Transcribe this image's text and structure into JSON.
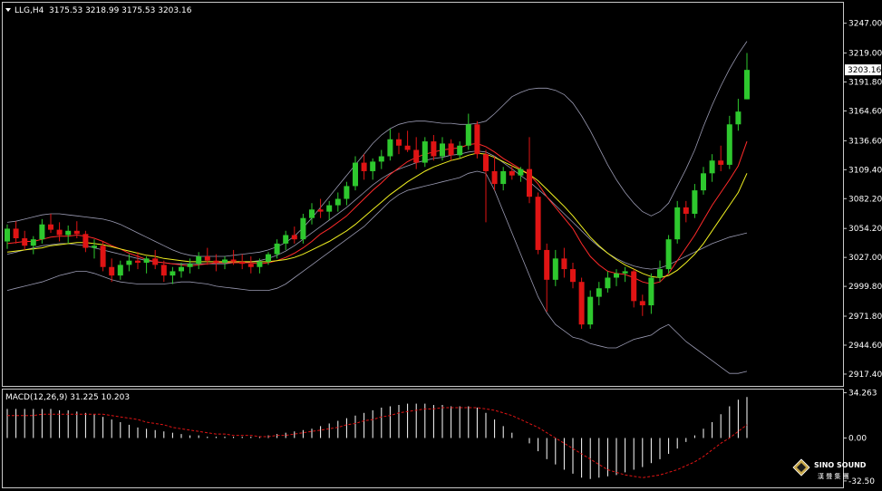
{
  "chart_header": {
    "symbol_timeframe": "LLG,H4",
    "ohlc": "3175.53 3218.99 3175.53 3203.16"
  },
  "macd_header": {
    "label": "MACD(12,26,9) 31.225 10.203"
  },
  "colors": {
    "background": "#000000",
    "bull": "#2ec82e",
    "bear": "#e01414",
    "bands": "#9a9ab2",
    "ma_fast": "#ff2a2a",
    "ma_slow": "#f0f020",
    "macd_hist": "#ffffff",
    "macd_signal": "#e01414",
    "frame": "#c8c8c8"
  },
  "logo": {
    "line1": "SINO SOUND",
    "line2": "漢 聲 集 團",
    "icon": "diamond-logo-icon"
  },
  "chart_data": [
    {
      "type": "candlestick",
      "title": "LLG,H4",
      "ylim": [
        2908,
        3262
      ],
      "y_ticks": [
        "3247.00",
        "3219.00",
        "3191.80",
        "3164.60",
        "3136.60",
        "3109.40",
        "3082.20",
        "3054.20",
        "3027.00",
        "2999.80",
        "2971.80",
        "2944.60",
        "2917.40"
      ],
      "current_price": "3203.16",
      "candles": [
        [
          3042,
          3058,
          3035,
          3054
        ],
        [
          3054,
          3061,
          3040,
          3045
        ],
        [
          3045,
          3052,
          3034,
          3038
        ],
        [
          3038,
          3047,
          3030,
          3044
        ],
        [
          3044,
          3063,
          3040,
          3058
        ],
        [
          3058,
          3068,
          3050,
          3053
        ],
        [
          3053,
          3060,
          3042,
          3048
        ],
        [
          3048,
          3057,
          3040,
          3052
        ],
        [
          3052,
          3061,
          3045,
          3049
        ],
        [
          3049,
          3052,
          3032,
          3036
        ],
        [
          3036,
          3044,
          3026,
          3038
        ],
        [
          3038,
          3042,
          3014,
          3018
        ],
        [
          3018,
          3026,
          3004,
          3010
        ],
        [
          3010,
          3024,
          3006,
          3020
        ],
        [
          3020,
          3030,
          3014,
          3024
        ],
        [
          3024,
          3032,
          3016,
          3022
        ],
        [
          3022,
          3028,
          3012,
          3026
        ],
        [
          3026,
          3034,
          3016,
          3020
        ],
        [
          3020,
          3024,
          3004,
          3010
        ],
        [
          3010,
          3018,
          3002,
          3014
        ],
        [
          3014,
          3022,
          3008,
          3018
        ],
        [
          3018,
          3026,
          3012,
          3021
        ],
        [
          3021,
          3032,
          3016,
          3028
        ],
        [
          3028,
          3036,
          3020,
          3024
        ],
        [
          3024,
          3030,
          3014,
          3022
        ],
        [
          3022,
          3028,
          3016,
          3025
        ],
        [
          3025,
          3034,
          3020,
          3023
        ],
        [
          3023,
          3030,
          3016,
          3021
        ],
        [
          3021,
          3028,
          3012,
          3018
        ],
        [
          3018,
          3026,
          3012,
          3023
        ],
        [
          3023,
          3032,
          3020,
          3030
        ],
        [
          3030,
          3044,
          3026,
          3040
        ],
        [
          3040,
          3052,
          3034,
          3048
        ],
        [
          3048,
          3056,
          3040,
          3044
        ],
        [
          3044,
          3068,
          3040,
          3064
        ],
        [
          3064,
          3078,
          3058,
          3072
        ],
        [
          3072,
          3082,
          3064,
          3070
        ],
        [
          3070,
          3080,
          3062,
          3076
        ],
        [
          3076,
          3088,
          3070,
          3082
        ],
        [
          3082,
          3098,
          3076,
          3094
        ],
        [
          3094,
          3122,
          3090,
          3116
        ],
        [
          3116,
          3124,
          3100,
          3108
        ],
        [
          3108,
          3120,
          3100,
          3117
        ],
        [
          3117,
          3128,
          3110,
          3122
        ],
        [
          3122,
          3148,
          3118,
          3138
        ],
        [
          3138,
          3144,
          3124,
          3132
        ],
        [
          3132,
          3146,
          3126,
          3128
        ],
        [
          3128,
          3140,
          3110,
          3116
        ],
        [
          3116,
          3140,
          3112,
          3136
        ],
        [
          3136,
          3142,
          3118,
          3122
        ],
        [
          3122,
          3140,
          3118,
          3134
        ],
        [
          3134,
          3138,
          3118,
          3123
        ],
        [
          3123,
          3136,
          3120,
          3132
        ],
        [
          3132,
          3162,
          3128,
          3152
        ],
        [
          3152,
          3155,
          3120,
          3124
        ],
        [
          3124,
          3128,
          3060,
          3108
        ],
        [
          3108,
          3122,
          3090,
          3096
        ],
        [
          3096,
          3112,
          3090,
          3108
        ],
        [
          3108,
          3114,
          3100,
          3104
        ],
        [
          3104,
          3112,
          3098,
          3110
        ],
        [
          3110,
          3140,
          3078,
          3084
        ],
        [
          3084,
          3088,
          3030,
          3034
        ],
        [
          3034,
          3040,
          2976,
          3006
        ],
        [
          3006,
          3034,
          3000,
          3026
        ],
        [
          3026,
          3036,
          3008,
          3016
        ],
        [
          3016,
          3022,
          2998,
          3004
        ],
        [
          3004,
          3008,
          2960,
          2964
        ],
        [
          2964,
          2996,
          2960,
          2990
        ],
        [
          2990,
          3004,
          2982,
          2998
        ],
        [
          2998,
          3014,
          2994,
          3008
        ],
        [
          3008,
          3016,
          3000,
          3012
        ],
        [
          3012,
          3018,
          3004,
          3014
        ],
        [
          3014,
          3016,
          2980,
          2986
        ],
        [
          2986,
          2992,
          2972,
          2982
        ],
        [
          2982,
          3012,
          2974,
          3008
        ],
        [
          3008,
          3024,
          3004,
          3016
        ],
        [
          3016,
          3048,
          3012,
          3044
        ],
        [
          3044,
          3080,
          3040,
          3074
        ],
        [
          3074,
          3080,
          3060,
          3068
        ],
        [
          3068,
          3096,
          3064,
          3090
        ],
        [
          3090,
          3112,
          3086,
          3106
        ],
        [
          3106,
          3124,
          3098,
          3118
        ],
        [
          3118,
          3132,
          3108,
          3114
        ],
        [
          3114,
          3160,
          3110,
          3152
        ],
        [
          3152,
          3176,
          3146,
          3164
        ],
        [
          3175.53,
          3218.99,
          3175.53,
          3203.16
        ]
      ],
      "moving_averages": [
        {
          "name": "fast",
          "color": "#ff2a2a",
          "values": [
            3040,
            3041,
            3042,
            3042,
            3044,
            3046,
            3047,
            3047,
            3048,
            3047,
            3045,
            3042,
            3038,
            3035,
            3031,
            3028,
            3025,
            3023,
            3022,
            3021,
            3020,
            3019,
            3020,
            3021,
            3022,
            3022,
            3022,
            3022,
            3022,
            3021,
            3022,
            3024,
            3027,
            3031,
            3036,
            3042,
            3049,
            3054,
            3060,
            3066,
            3074,
            3082,
            3090,
            3097,
            3105,
            3111,
            3117,
            3121,
            3124,
            3126,
            3128,
            3129,
            3130,
            3133,
            3134,
            3131,
            3126,
            3120,
            3115,
            3110,
            3105,
            3096,
            3084,
            3074,
            3064,
            3054,
            3040,
            3028,
            3020,
            3014,
            3012,
            3011,
            3008,
            3004,
            3002,
            3004,
            3012,
            3024,
            3036,
            3048,
            3062,
            3076,
            3088,
            3100,
            3113,
            3136
          ]
        },
        {
          "name": "slow",
          "color": "#f0f020",
          "values": [
            3032,
            3033,
            3034,
            3035,
            3036,
            3038,
            3039,
            3040,
            3041,
            3041,
            3040,
            3039,
            3037,
            3035,
            3033,
            3031,
            3029,
            3028,
            3026,
            3025,
            3024,
            3023,
            3023,
            3023,
            3023,
            3023,
            3023,
            3023,
            3023,
            3023,
            3023,
            3024,
            3025,
            3027,
            3030,
            3034,
            3038,
            3042,
            3047,
            3052,
            3058,
            3065,
            3072,
            3079,
            3086,
            3092,
            3098,
            3103,
            3108,
            3112,
            3115,
            3118,
            3120,
            3123,
            3125,
            3124,
            3121,
            3117,
            3113,
            3109,
            3105,
            3099,
            3091,
            3083,
            3075,
            3066,
            3056,
            3046,
            3038,
            3031,
            3025,
            3020,
            3016,
            3012,
            3009,
            3008,
            3010,
            3015,
            3022,
            3030,
            3040,
            3052,
            3064,
            3076,
            3088,
            3106
          ]
        },
        {
          "name": "bb_upper",
          "color": "#9a9ab2",
          "values": [
            3060,
            3061,
            3063,
            3065,
            3067,
            3068,
            3068,
            3067,
            3066,
            3065,
            3064,
            3063,
            3061,
            3058,
            3054,
            3050,
            3046,
            3042,
            3038,
            3034,
            3031,
            3029,
            3028,
            3028,
            3028,
            3028,
            3029,
            3030,
            3031,
            3032,
            3034,
            3037,
            3041,
            3047,
            3055,
            3064,
            3074,
            3084,
            3094,
            3104,
            3114,
            3124,
            3134,
            3142,
            3148,
            3152,
            3154,
            3155,
            3155,
            3154,
            3153,
            3153,
            3152,
            3152,
            3153,
            3155,
            3162,
            3170,
            3178,
            3182,
            3185,
            3186,
            3186,
            3184,
            3180,
            3172,
            3160,
            3146,
            3130,
            3114,
            3100,
            3088,
            3078,
            3070,
            3066,
            3070,
            3078,
            3094,
            3110,
            3128,
            3150,
            3170,
            3188,
            3204,
            3218,
            3230
          ]
        },
        {
          "name": "bb_mid",
          "color": "#9a9ab2",
          "values": [
            3030,
            3032,
            3034,
            3036,
            3038,
            3039,
            3040,
            3040,
            3039,
            3038,
            3036,
            3034,
            3032,
            3030,
            3028,
            3026,
            3024,
            3023,
            3022,
            3021,
            3021,
            3021,
            3021,
            3021,
            3021,
            3021,
            3022,
            3022,
            3023,
            3024,
            3026,
            3029,
            3033,
            3038,
            3044,
            3050,
            3056,
            3062,
            3068,
            3074,
            3081,
            3088,
            3095,
            3101,
            3106,
            3110,
            3113,
            3116,
            3118,
            3120,
            3121,
            3123,
            3124,
            3126,
            3127,
            3126,
            3122,
            3116,
            3110,
            3104,
            3098,
            3091,
            3084,
            3076,
            3068,
            3060,
            3052,
            3044,
            3037,
            3031,
            3026,
            3022,
            3019,
            3017,
            3016,
            3017,
            3020,
            3024,
            3028,
            3032,
            3036,
            3040,
            3043,
            3046,
            3048,
            3050
          ]
        },
        {
          "name": "bb_lower",
          "color": "#9a9ab2",
          "values": [
            2996,
            2998,
            3000,
            3002,
            3004,
            3007,
            3010,
            3012,
            3014,
            3014,
            3012,
            3009,
            3006,
            3004,
            3003,
            3002,
            3002,
            3002,
            3002,
            3003,
            3004,
            3004,
            3003,
            3002,
            3000,
            2999,
            2998,
            2997,
            2996,
            2996,
            2996,
            2998,
            3002,
            3008,
            3014,
            3020,
            3026,
            3032,
            3038,
            3044,
            3050,
            3056,
            3064,
            3072,
            3080,
            3086,
            3090,
            3092,
            3094,
            3096,
            3098,
            3100,
            3102,
            3106,
            3108,
            3106,
            3090,
            3070,
            3050,
            3030,
            3010,
            2990,
            2975,
            2964,
            2958,
            2952,
            2950,
            2946,
            2944,
            2942,
            2942,
            2946,
            2950,
            2952,
            2954,
            2960,
            2964,
            2956,
            2948,
            2942,
            2936,
            2930,
            2924,
            2918,
            2918,
            2920
          ]
        }
      ]
    },
    {
      "type": "bar",
      "title": "MACD(12,26,9) 31.225 10.203",
      "ylim": [
        -36,
        36
      ],
      "y_ticks": [
        "34.263",
        "0.00",
        "-32.50"
      ],
      "histogram": [
        22,
        22,
        22,
        22,
        22,
        22,
        21,
        21,
        20,
        19,
        18,
        16,
        14,
        12,
        10,
        8,
        7,
        6,
        5,
        4,
        3,
        2,
        2,
        1,
        1,
        1,
        1,
        1,
        1,
        1,
        2,
        3,
        4,
        5,
        6,
        7,
        9,
        11,
        13,
        15,
        17,
        19,
        21,
        23,
        24,
        25,
        26,
        26,
        26,
        25,
        25,
        24,
        24,
        24,
        23,
        19,
        14,
        9,
        4,
        0,
        -4,
        -10,
        -16,
        -20,
        -24,
        -27,
        -30,
        -31,
        -30,
        -29,
        -28,
        -26,
        -24,
        -22,
        -19,
        -16,
        -12,
        -8,
        -3,
        2,
        7,
        12,
        18,
        24,
        29,
        31
      ],
      "signal": [
        17,
        17,
        17,
        17,
        18,
        18,
        18,
        18,
        18,
        18,
        18,
        18,
        17,
        16,
        15,
        14,
        12,
        11,
        10,
        8,
        7,
        6,
        5,
        4,
        3,
        3,
        2,
        2,
        2,
        1,
        1,
        2,
        2,
        3,
        4,
        5,
        6,
        7,
        8,
        10,
        11,
        13,
        14,
        16,
        17,
        19,
        20,
        21,
        22,
        22,
        23,
        23,
        23,
        23,
        23,
        22,
        21,
        19,
        17,
        14,
        11,
        8,
        4,
        0,
        -4,
        -8,
        -12,
        -16,
        -20,
        -24,
        -26,
        -28,
        -29,
        -30,
        -29,
        -28,
        -26,
        -24,
        -21,
        -18,
        -14,
        -9,
        -4,
        0,
        5,
        10
      ]
    }
  ]
}
